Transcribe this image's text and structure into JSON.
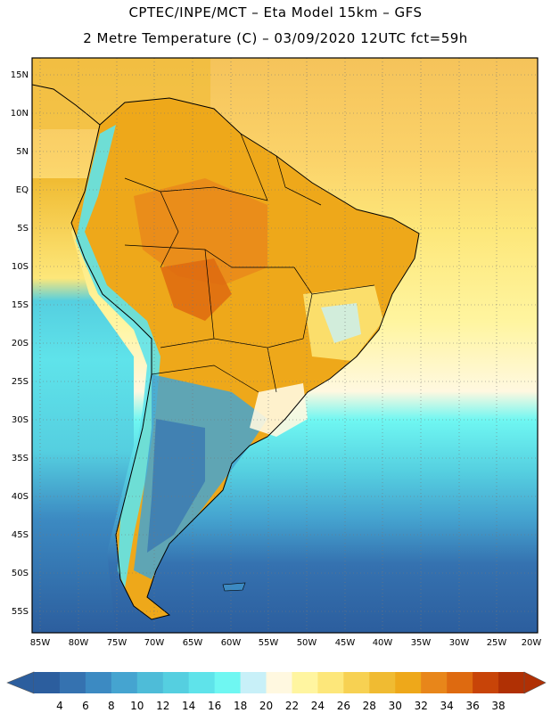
{
  "header": {
    "line1": "CPTEC/INPE/MCT –  Eta Model 15km – GFS",
    "line2": "2 Metre Temperature (C) – 03/09/2020 12UTC fct=59h"
  },
  "map": {
    "lat_labels": [
      "15N",
      "10N",
      "5N",
      "EQ",
      "5S",
      "10S",
      "15S",
      "20S",
      "25S",
      "30S",
      "35S",
      "40S",
      "45S",
      "50S",
      "55S"
    ],
    "lon_labels": [
      "85W",
      "80W",
      "75W",
      "70W",
      "65W",
      "60W",
      "55W",
      "50W",
      "45W",
      "40W",
      "35W",
      "30W",
      "25W",
      "20W"
    ]
  },
  "colorbar": {
    "labels": [
      "4",
      "6",
      "8",
      "10",
      "12",
      "14",
      "16",
      "18",
      "20",
      "22",
      "24",
      "26",
      "28",
      "30",
      "32",
      "34",
      "36",
      "38"
    ],
    "colors": [
      "#2c5e9e",
      "#3572b0",
      "#3c8ac2",
      "#45a4d0",
      "#4ebcd8",
      "#55cfe0",
      "#5fe3ea",
      "#6ff7f2",
      "#c8f0f8",
      "#fff8e0",
      "#fff5a0",
      "#fde77a",
      "#f7d152",
      "#f0bb32",
      "#eea81a",
      "#e8861a",
      "#de6a10",
      "#c84408",
      "#b03004"
    ]
  },
  "chart_data": {
    "type": "heatmap",
    "title": "2 Metre Temperature (C) – 03/09/2020 12UTC fct=59h",
    "xlabel": "",
    "ylabel": "",
    "x_ticks": [
      "85W",
      "80W",
      "75W",
      "70W",
      "65W",
      "60W",
      "55W",
      "50W",
      "45W",
      "40W",
      "35W",
      "30W",
      "25W",
      "20W"
    ],
    "y_ticks": [
      "15N",
      "10N",
      "5N",
      "EQ",
      "5S",
      "10S",
      "15S",
      "20S",
      "25S",
      "30S",
      "35S",
      "40S",
      "45S",
      "50S",
      "55S"
    ],
    "xlim": [
      -86,
      -20
    ],
    "ylim": [
      -58,
      16
    ],
    "color_scale_levels": [
      4,
      6,
      8,
      10,
      12,
      14,
      16,
      18,
      20,
      22,
      24,
      26,
      28,
      30,
      32,
      34,
      36,
      38
    ],
    "grid": true
  }
}
